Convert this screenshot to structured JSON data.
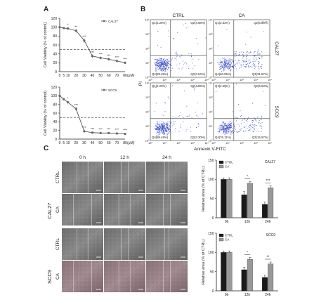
{
  "panels": {
    "A": "A",
    "B": "B",
    "C": "C"
  },
  "chart_data": [
    {
      "type": "line",
      "panel": "A",
      "legend": "CAL27",
      "ylabel": "Cell Viability (% of control)",
      "xunit": "(μM)",
      "x": [
        0,
        5,
        10,
        20,
        30,
        40,
        50,
        60,
        70,
        80
      ],
      "values": [
        100,
        98,
        97,
        92,
        70,
        35,
        31,
        28,
        24,
        20
      ],
      "errors": [
        3,
        2,
        3,
        4,
        5,
        4,
        3,
        3,
        3,
        3
      ],
      "significance": [
        "",
        "",
        "*",
        "**",
        "***",
        "***",
        "***",
        "***",
        "***",
        "***"
      ],
      "xlim": [
        0,
        80
      ],
      "ylim": [
        0,
        120
      ],
      "yticks": [
        0,
        20,
        40,
        60,
        80,
        100,
        120
      ],
      "reference_line": 50
    },
    {
      "type": "line",
      "panel": "A",
      "legend": "SCC9",
      "ylabel": "Cell Viability (% of control)",
      "xunit": "(μM)",
      "x": [
        0,
        5,
        10,
        20,
        30,
        40,
        50,
        60,
        70,
        80
      ],
      "values": [
        100,
        92,
        85,
        70,
        18,
        15,
        14,
        14,
        13,
        12
      ],
      "errors": [
        3,
        3,
        3,
        4,
        3,
        2,
        2,
        2,
        2,
        2
      ],
      "significance": [
        "",
        "",
        "*",
        "***",
        "***",
        "***",
        "***",
        "***",
        "***",
        "***"
      ],
      "xlim": [
        0,
        80
      ],
      "ylim": [
        0,
        120
      ],
      "yticks": [
        0,
        20,
        40,
        60,
        80,
        100,
        120
      ],
      "reference_line": 50
    },
    {
      "type": "bar",
      "panel": "C",
      "title": "CAL27",
      "ylabel": "Relative area (% of CTRL)",
      "categories": [
        "0h",
        "12h",
        "24h"
      ],
      "series": [
        {
          "name": "CTRL",
          "values": [
            100,
            60,
            35
          ],
          "errors": [
            4,
            8,
            6
          ],
          "color": "#1a1a1a"
        },
        {
          "name": "CA",
          "values": [
            100,
            90,
            78
          ],
          "errors": [
            4,
            4,
            5
          ],
          "color": "#999999"
        }
      ],
      "significance": [
        "",
        "*",
        "***"
      ],
      "ylim": [
        0,
        150
      ],
      "yticks": [
        0,
        50,
        100,
        150
      ]
    },
    {
      "type": "bar",
      "panel": "C",
      "title": "SCC9",
      "ylabel": "Relative area (% of CTRL)",
      "categories": [
        "0h",
        "12h",
        "24h"
      ],
      "series": [
        {
          "name": "CTRL",
          "values": [
            100,
            55,
            35
          ],
          "errors": [
            4,
            6,
            6
          ],
          "color": "#1a1a1a"
        },
        {
          "name": "CA",
          "values": [
            100,
            82,
            70
          ],
          "errors": [
            4,
            5,
            5
          ],
          "color": "#999999"
        }
      ],
      "significance": [
        "",
        "*",
        "**"
      ],
      "ylim": [
        0,
        150
      ],
      "yticks": [
        0,
        50,
        100,
        150
      ]
    }
  ],
  "flow": {
    "cols": [
      "CTRL",
      "CA"
    ],
    "rows": [
      "CAL27",
      "SCC9"
    ],
    "xlabel": "Annexin V-FITC",
    "ylabel": "PI",
    "ticks": [
      "10⁰",
      "10¹",
      "10²",
      "10³",
      "10⁴"
    ],
    "quadrants": [
      [
        "Q1(2.20%)",
        "Q2(4.58%)",
        "Q4(89.29%)",
        "Q3(3.94%)"
      ],
      [
        "Q1(2.52%)",
        "Q2(5.88%)",
        "Q4(60.05%)",
        "Q3(31.57%)"
      ],
      [
        "Q1(2.23%)",
        "Q2(4.89%)",
        "Q4(89.48%)",
        "Q3(3.30%)"
      ],
      [
        "Q1(2.68%)",
        "Q2(5.63%)",
        "Q4(76.11%)",
        "Q3(15.57%)"
      ]
    ]
  },
  "micro": {
    "times": [
      "0 h",
      "12 h",
      "24 h"
    ],
    "rows": [
      {
        "label": "CTRL",
        "line": "CAL27"
      },
      {
        "label": "CA",
        "line": "CAL27"
      },
      {
        "label": "CTRL",
        "line": "SCC9"
      },
      {
        "label": "CA",
        "line": "SCC9"
      }
    ]
  },
  "colors": {
    "dots": "#3b4fc7",
    "ctrl": "#1a1a1a",
    "ca": "#999999"
  }
}
